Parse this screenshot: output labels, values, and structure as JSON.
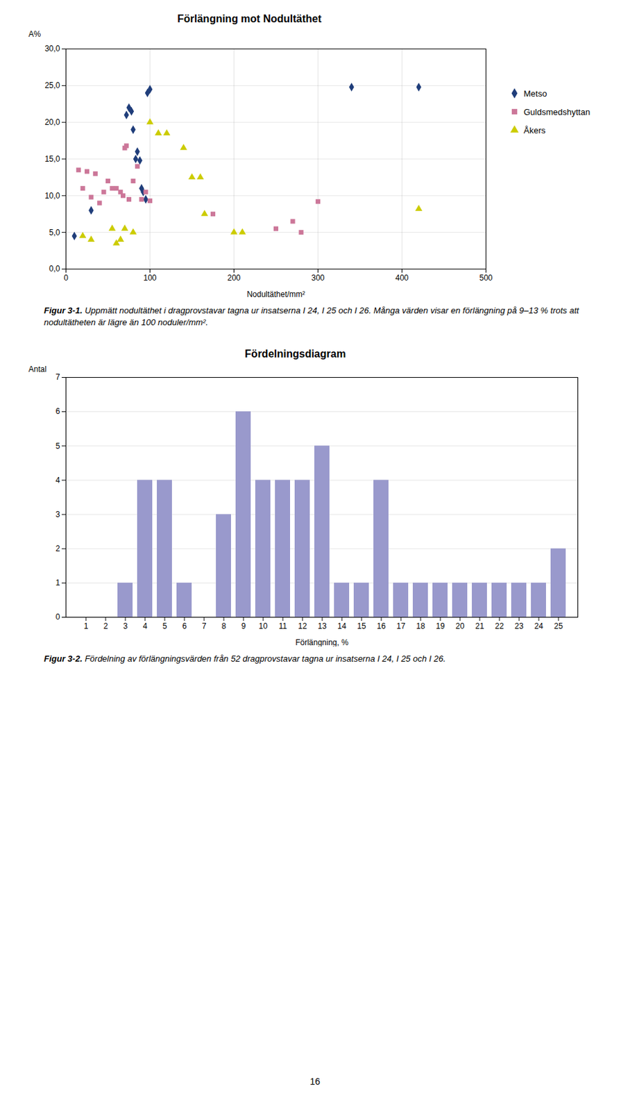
{
  "chart_data": [
    {
      "type": "scatter",
      "title": "Förlängning mot Nodultäthet",
      "xlabel": "Nodultäthet/mm²",
      "ylabel": "A%",
      "xlim": [
        0,
        500
      ],
      "ylim": [
        0.0,
        30.0
      ],
      "xticks": [
        0,
        100,
        200,
        300,
        400,
        500
      ],
      "yticks": [
        {
          "value": 0.0,
          "label": "0,0"
        },
        {
          "value": 5.0,
          "label": "5,0"
        },
        {
          "value": 10.0,
          "label": "10,0"
        },
        {
          "value": 15.0,
          "label": "15,0"
        },
        {
          "value": 20.0,
          "label": "20,0"
        },
        {
          "value": 25.0,
          "label": "25,0"
        },
        {
          "value": 30.0,
          "label": "30,0"
        }
      ],
      "grid": true,
      "legend": "right",
      "series": [
        {
          "name": "Metso",
          "color": "#1F3D7A",
          "marker": "diamond",
          "x": [
            10,
            30,
            72,
            75,
            78,
            80,
            83,
            85,
            88,
            90,
            92,
            95,
            97,
            100,
            340,
            420
          ],
          "values": [
            4.5,
            8.0,
            21.0,
            22.0,
            21.5,
            19.0,
            15.0,
            16.0,
            14.8,
            11.0,
            10.5,
            9.5,
            24.0,
            24.5,
            24.8,
            24.8
          ]
        },
        {
          "name": "Guldsmedshyttan",
          "color": "#CC7799",
          "marker": "square",
          "x": [
            15,
            20,
            25,
            30,
            35,
            40,
            45,
            50,
            55,
            60,
            65,
            68,
            70,
            72,
            75,
            80,
            85,
            90,
            95,
            100,
            175,
            250,
            270,
            280,
            300
          ],
          "values": [
            13.5,
            11.0,
            13.3,
            9.8,
            13.0,
            9.0,
            10.5,
            12.0,
            11.0,
            11.0,
            10.5,
            10.0,
            16.5,
            16.8,
            9.5,
            12.0,
            14.0,
            9.5,
            10.5,
            9.3,
            7.5,
            5.5,
            6.5,
            5.0,
            9.2
          ]
        },
        {
          "name": "Åkers",
          "color": "#CCCC00",
          "marker": "triangle",
          "x": [
            20,
            30,
            55,
            60,
            65,
            70,
            80,
            100,
            110,
            120,
            140,
            150,
            160,
            165,
            200,
            210,
            420
          ],
          "values": [
            4.5,
            4.0,
            5.5,
            3.5,
            4.0,
            5.5,
            5.0,
            20.0,
            18.5,
            18.5,
            16.5,
            12.5,
            12.5,
            7.5,
            5.0,
            5.0,
            8.2
          ]
        }
      ],
      "annotations": [
        "Figur 3-1.",
        "Uppmätt nodultäthet i dragprovstavar tagna ur insatserna I 24, I 25 och I 26. Många värden visar en förlängning på 9–13 % trots att nodultätheten är lägre än 100 noduler/mm²."
      ]
    },
    {
      "type": "bar",
      "title": "Fördelningsdiagram",
      "xlabel": "Förlängning, %",
      "ylabel": "Antal",
      "categories": [
        1,
        2,
        3,
        4,
        5,
        6,
        7,
        8,
        9,
        10,
        11,
        12,
        13,
        14,
        15,
        16,
        17,
        18,
        19,
        20,
        21,
        22,
        23,
        24,
        25
      ],
      "values": [
        0,
        0,
        1,
        4,
        4,
        1,
        0,
        3,
        6,
        4,
        4,
        4,
        5,
        1,
        1,
        4,
        1,
        1,
        1,
        1,
        1,
        1,
        1,
        1,
        2
      ],
      "color": "#9999cc",
      "ylim": [
        0,
        7
      ],
      "yticks": [
        0,
        1,
        2,
        3,
        4,
        5,
        6,
        7
      ],
      "grid": "y",
      "annotations": [
        "Figur 3-2.",
        "Fördelning av förlängningsvärden från 52 dragprovstavar tagna ur insatserna I 24, I 25 och I 26."
      ]
    }
  ],
  "annotations": [
    "16"
  ]
}
